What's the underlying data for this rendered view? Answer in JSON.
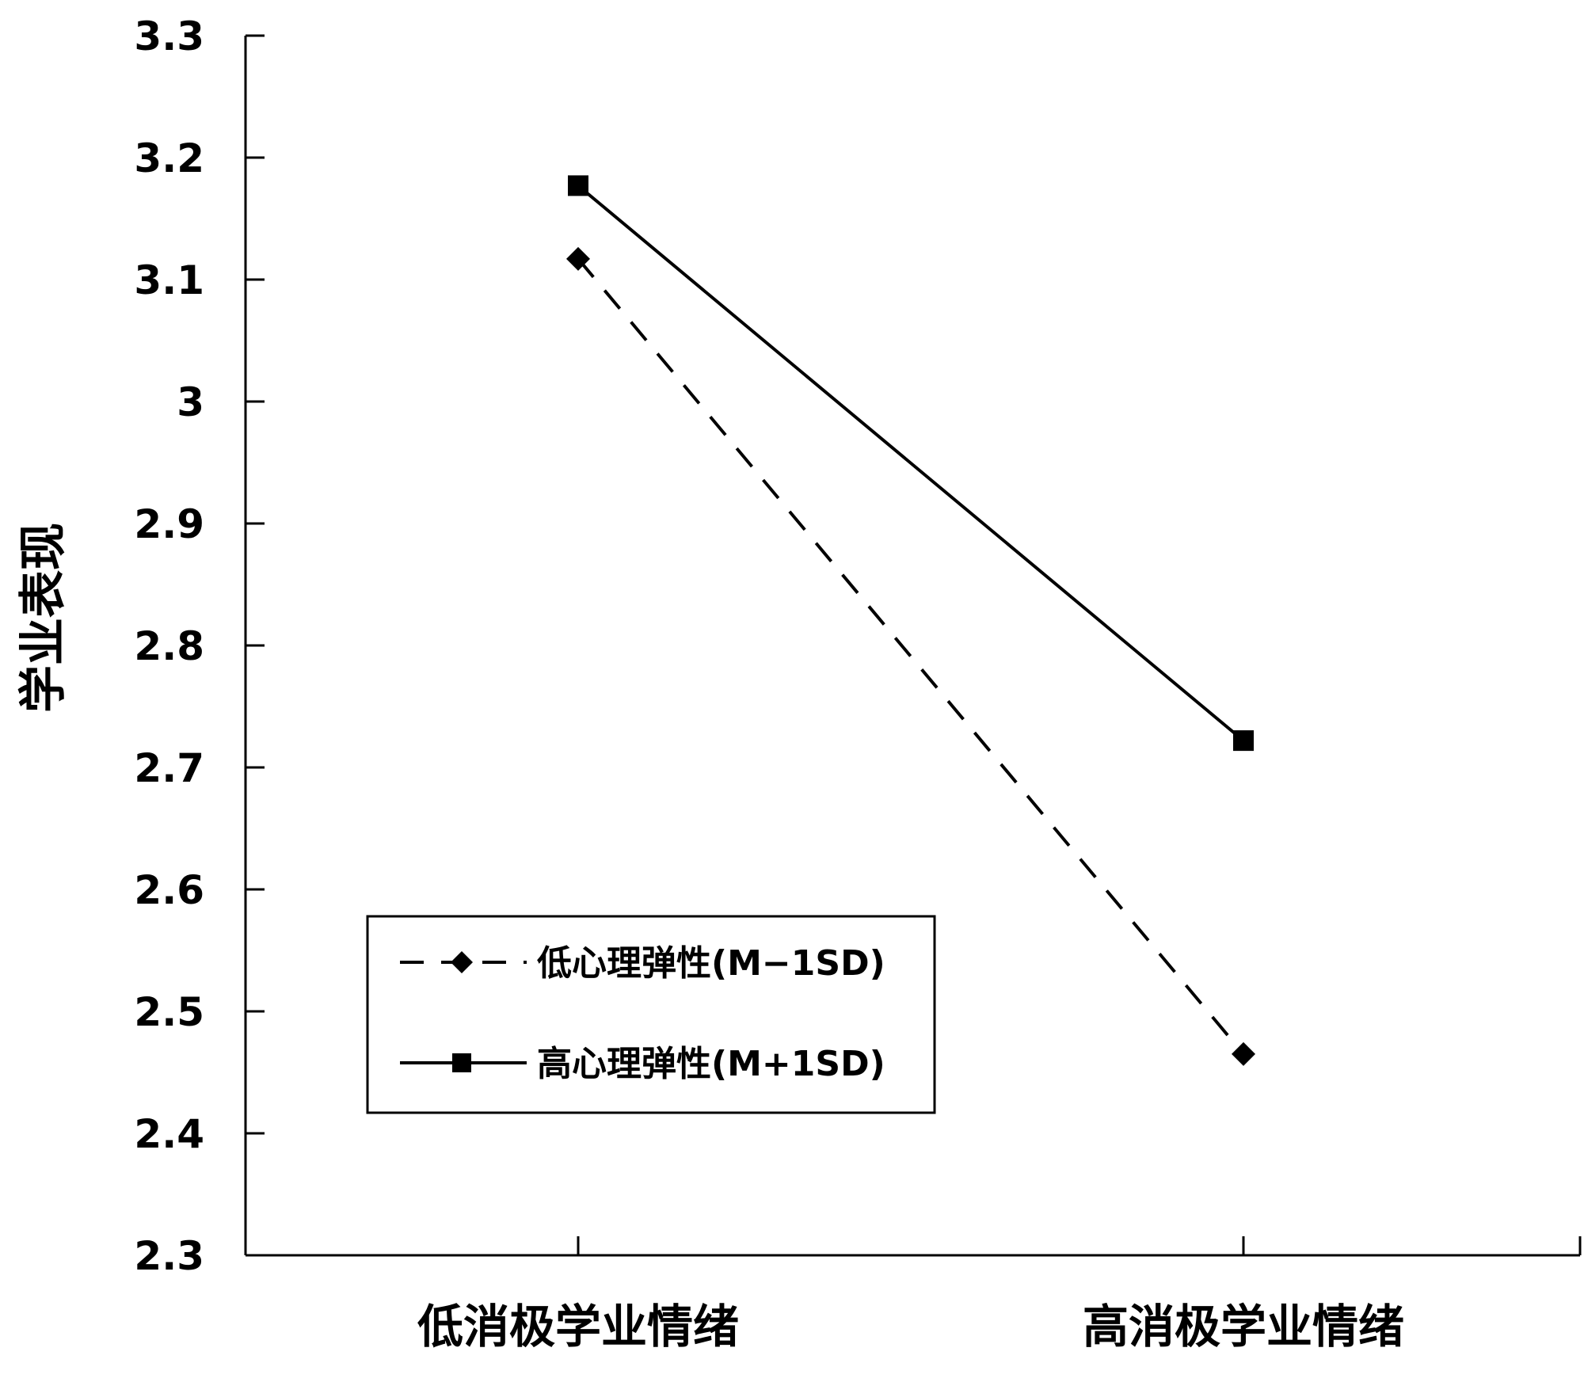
{
  "chart_data": {
    "type": "line",
    "title": "",
    "xlabel": "",
    "ylabel": "学业表现",
    "ylim": [
      2.3,
      3.3
    ],
    "yticks": [
      "3.3",
      "3.2",
      "3.1",
      "3",
      "2.9",
      "2.8",
      "2.7",
      "2.6",
      "2.5",
      "2.4",
      "2.3"
    ],
    "categories": [
      "低消极学业情绪",
      "高消极学业情绪"
    ],
    "series": [
      {
        "name": "低心理弹性(M−1SD)",
        "values": [
          3.117,
          2.465
        ],
        "style": "dashed",
        "marker": "diamond",
        "color": "#000000"
      },
      {
        "name": "高心理弹性(M+1SD)",
        "values": [
          3.177,
          2.722
        ],
        "style": "solid",
        "marker": "square",
        "color": "#000000"
      }
    ],
    "grid": false,
    "legend_position": "lower-left"
  }
}
